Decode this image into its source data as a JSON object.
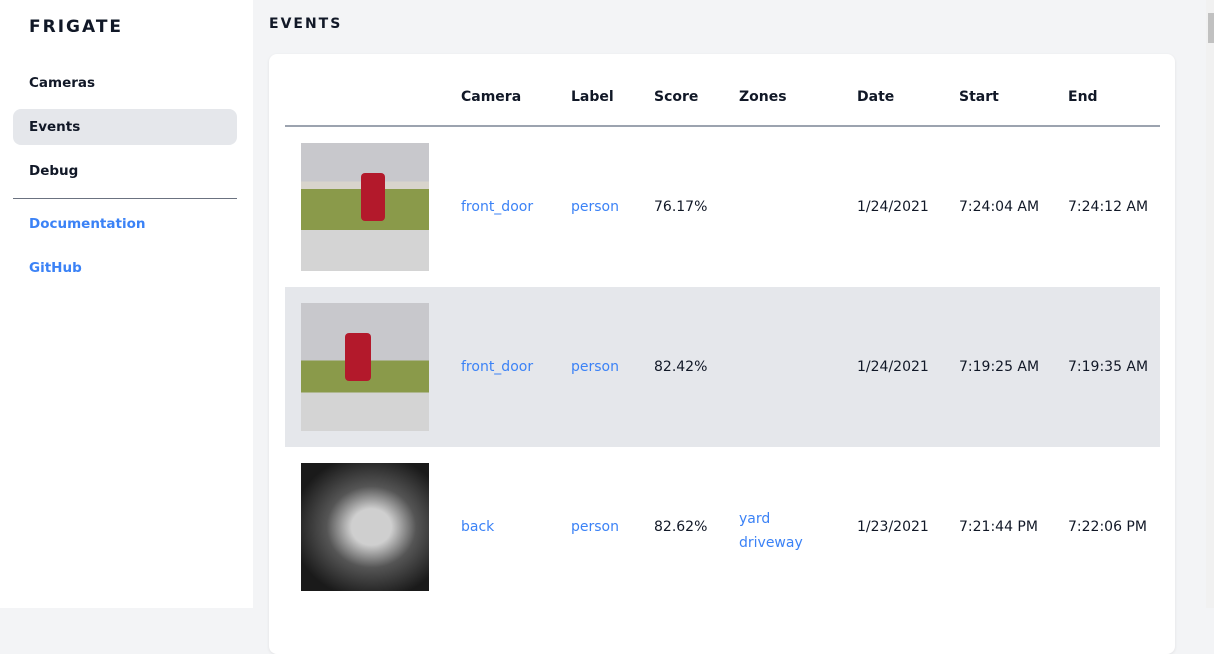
{
  "sidebar": {
    "brand": "FRIGATE",
    "items": [
      {
        "label": "Cameras",
        "active": false
      },
      {
        "label": "Events",
        "active": true
      },
      {
        "label": "Debug",
        "active": false
      }
    ],
    "links": [
      {
        "label": "Documentation"
      },
      {
        "label": "GitHub"
      }
    ]
  },
  "page": {
    "title": "EVENTS"
  },
  "table": {
    "headers": [
      "Camera",
      "Label",
      "Score",
      "Zones",
      "Date",
      "Start",
      "End"
    ],
    "rows": [
      {
        "camera": "front_door",
        "label": "person",
        "score": "76.17%",
        "zones": [
          "",
          ""
        ],
        "date": "1/24/2021",
        "start": "7:24:04 AM",
        "end": "7:24:12 AM"
      },
      {
        "camera": "front_door",
        "label": "person",
        "score": "82.42%",
        "zones": [
          "",
          ""
        ],
        "date": "1/24/2021",
        "start": "7:19:25 AM",
        "end": "7:19:35 AM"
      },
      {
        "camera": "back",
        "label": "person",
        "score": "82.62%",
        "zones": [
          "yard",
          "driveway"
        ],
        "date": "1/23/2021",
        "start": "7:21:44 PM",
        "end": "7:22:06 PM"
      }
    ]
  },
  "colors": {
    "accent": "#3b82f6",
    "active_bg": "#e5e7eb",
    "page_bg": "#f3f4f6"
  }
}
